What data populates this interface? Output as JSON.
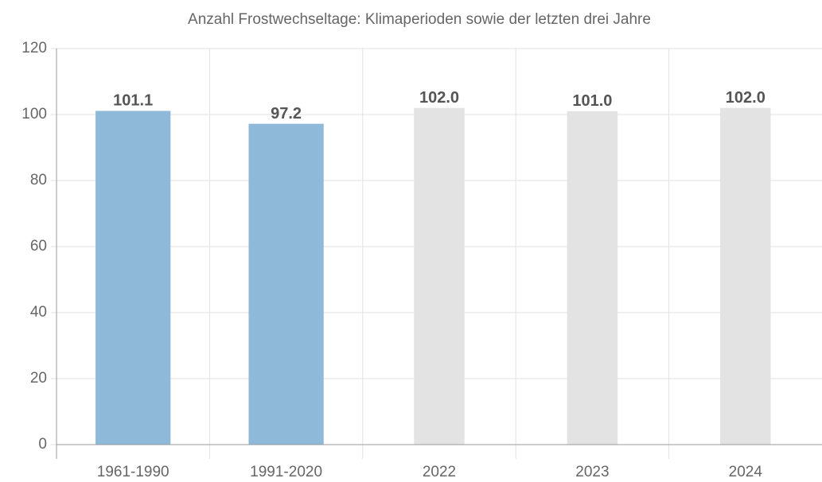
{
  "chart_data": {
    "type": "bar",
    "title": "Anzahl Frostwechseltage: Klimaperioden sowie der letzten drei Jahre",
    "categories": [
      "1961-1990",
      "1991-2020",
      "2022",
      "2023",
      "2024"
    ],
    "values": [
      101.1,
      97.2,
      102,
      101,
      102
    ],
    "value_labels": [
      "101.1",
      "97.2",
      "102.0",
      "101.0",
      "102.0"
    ],
    "colors": [
      "#8fb9d9",
      "#8fb9d9",
      "#e3e3e3",
      "#e3e3e3",
      "#e3e3e3"
    ],
    "ylim": [
      0,
      120
    ],
    "yticks": [
      0,
      20,
      40,
      60,
      80,
      100,
      120
    ],
    "grid": true
  }
}
